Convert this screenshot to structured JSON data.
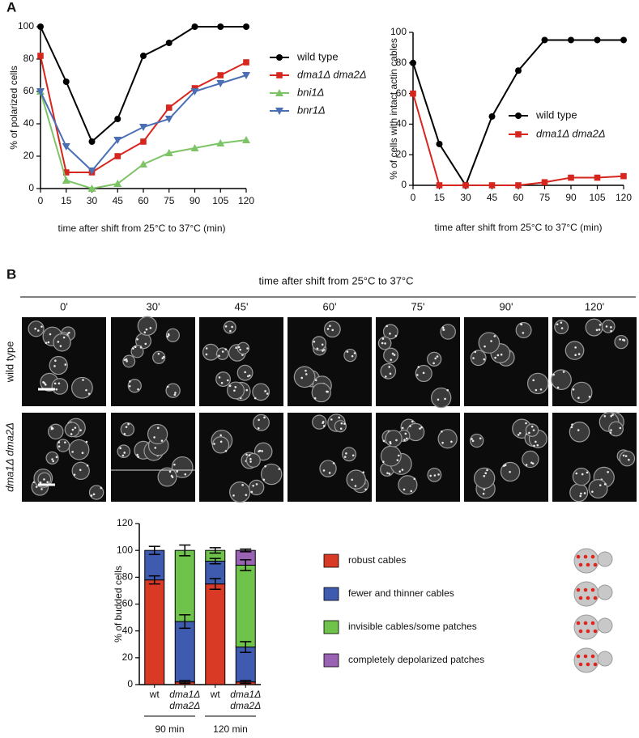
{
  "panel_a": {
    "label": "A"
  },
  "panel_b": {
    "label": "B",
    "header": "time after shift from 25°C to 37°C",
    "columns": [
      "0'",
      "30'",
      "45'",
      "60'",
      "75'",
      "90'",
      "120'"
    ],
    "rows": [
      "wild type",
      "dma1Δ dma2Δ"
    ]
  },
  "chart_data": [
    {
      "type": "line",
      "ylabel": "% of polarized cells",
      "xlabel": "time after shift from 25°C to 37°C (min)",
      "x": [
        0,
        15,
        30,
        45,
        60,
        75,
        90,
        105,
        120
      ],
      "xlim": [
        0,
        120
      ],
      "xticks": [
        0,
        15,
        30,
        45,
        60,
        75,
        90,
        105,
        120
      ],
      "ylim": [
        0,
        100
      ],
      "yticks": [
        0,
        20,
        40,
        60,
        80,
        100
      ],
      "series": [
        {
          "name": "wild type",
          "color": "#000000",
          "marker": "circle",
          "values": [
            100,
            66,
            29,
            43,
            82,
            90,
            100,
            100,
            100
          ]
        },
        {
          "name": "dma1Δ dma2Δ",
          "color": "#d7261e",
          "marker": "square",
          "values": [
            82,
            10,
            10,
            20,
            29,
            50,
            62,
            70,
            78
          ]
        },
        {
          "name": "bni1Δ",
          "color": "#7dc466",
          "marker": "triangle-up",
          "values": [
            60,
            5,
            0,
            3,
            15,
            22,
            25,
            28,
            30
          ]
        },
        {
          "name": "bnr1Δ",
          "color": "#4a6fb5",
          "marker": "triangle-down",
          "values": [
            60,
            26,
            11,
            30,
            38,
            43,
            60,
            65,
            70
          ]
        }
      ]
    },
    {
      "type": "line",
      "ylabel": "% of cells with intact actin cables",
      "xlabel": "time after shift from 25°C to 37°C (min)",
      "x": [
        0,
        15,
        30,
        45,
        60,
        75,
        90,
        105,
        120
      ],
      "xlim": [
        0,
        120
      ],
      "xticks": [
        0,
        15,
        30,
        45,
        60,
        75,
        90,
        105,
        120
      ],
      "ylim": [
        0,
        100
      ],
      "yticks": [
        0,
        20,
        40,
        60,
        80,
        100
      ],
      "series": [
        {
          "name": "wild type",
          "color": "#000000",
          "marker": "circle",
          "values": [
            80,
            27,
            0,
            45,
            75,
            95,
            95,
            95,
            95
          ]
        },
        {
          "name": "dma1Δ dma2Δ",
          "color": "#d7261e",
          "marker": "square",
          "values": [
            60,
            0,
            0,
            0,
            0,
            2,
            5,
            5,
            6
          ]
        }
      ]
    },
    {
      "type": "stacked-bar",
      "ylabel": "% of budded cells",
      "categories": [
        "wt",
        "dma1Δ dma2Δ",
        "wt",
        "dma1Δ dma2Δ"
      ],
      "groups": [
        "90 min",
        "120 min"
      ],
      "ylim": [
        0,
        120
      ],
      "yticks": [
        0,
        20,
        40,
        60,
        80,
        100,
        120
      ],
      "series": [
        {
          "name": "robust cables",
          "color": "#d93a26",
          "values": [
            78,
            2,
            75,
            2
          ],
          "errors": [
            3,
            1,
            4,
            1
          ]
        },
        {
          "name": "fewer and thinner cables",
          "color": "#3f5bb0",
          "values": [
            22,
            45,
            17,
            26
          ],
          "errors": [
            3,
            5,
            2,
            4
          ]
        },
        {
          "name": "invisible cables/some patches",
          "color": "#6fc24a",
          "values": [
            0,
            53,
            8,
            61
          ],
          "errors": [
            null,
            4,
            2,
            4
          ]
        },
        {
          "name": "completely depolarized patches",
          "color": "#9a62b3",
          "values": [
            0,
            0,
            0,
            11
          ],
          "errors": [
            null,
            null,
            null,
            1
          ]
        }
      ]
    }
  ]
}
